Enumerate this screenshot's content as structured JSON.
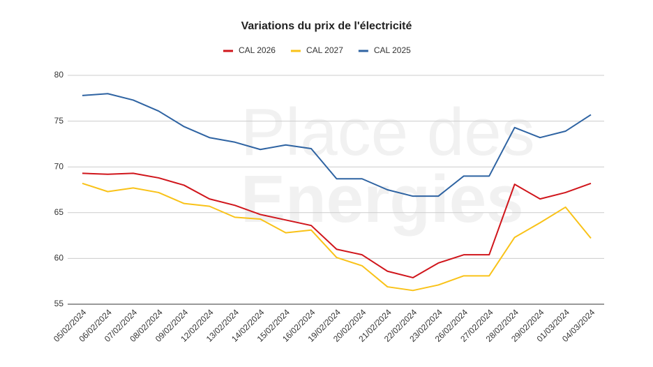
{
  "chart_data": {
    "type": "line",
    "title": "Variations du prix de l'électricité",
    "watermark": [
      "Place des",
      "Energies"
    ],
    "categories": [
      "05/02/2024",
      "06/02/2024",
      "07/02/2024",
      "08/02/2024",
      "09/02/2024",
      "12/02/2024",
      "13/02/2024",
      "14/02/2024",
      "15/02/2024",
      "16/02/2024",
      "19/02/2024",
      "20/02/2024",
      "21/02/2024",
      "22/02/2024",
      "23/02/2024",
      "26/02/2024",
      "27/02/2024",
      "28/02/2024",
      "29/02/2024",
      "01/03/2024",
      "04/03/2024"
    ],
    "series": [
      {
        "name": "CAL 2026",
        "color": "#d0151b",
        "values": [
          69.3,
          69.2,
          69.3,
          68.8,
          68.0,
          66.5,
          65.8,
          64.8,
          64.2,
          63.6,
          61.0,
          60.4,
          58.6,
          57.9,
          59.5,
          60.4,
          60.4,
          68.1,
          66.5,
          67.2,
          68.2
        ]
      },
      {
        "name": "CAL 2027",
        "color": "#f9c218",
        "values": [
          68.2,
          67.3,
          67.7,
          67.2,
          66.0,
          65.7,
          64.5,
          64.3,
          62.8,
          63.1,
          60.1,
          59.2,
          56.9,
          56.5,
          57.1,
          58.1,
          58.1,
          62.3,
          63.9,
          65.6,
          62.2
        ]
      },
      {
        "name": "CAL 2025",
        "color": "#2e63a2",
        "values": [
          77.8,
          78.0,
          77.3,
          76.1,
          74.4,
          73.2,
          72.7,
          71.9,
          72.4,
          72.0,
          68.7,
          68.7,
          67.5,
          66.8,
          66.8,
          69.0,
          69.0,
          74.3,
          73.2,
          73.9,
          75.7
        ]
      }
    ],
    "ylim": [
      55,
      80
    ],
    "yticks": [
      55,
      60,
      65,
      70,
      75,
      80
    ],
    "grid": true,
    "legend": "top"
  }
}
